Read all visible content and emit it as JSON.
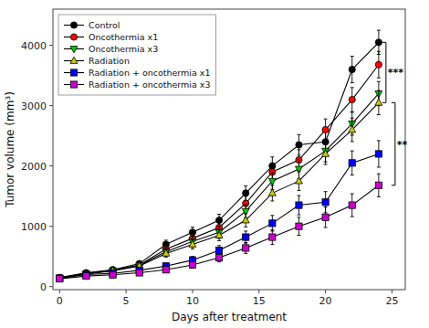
{
  "chart_data": {
    "type": "line",
    "xlabel": "Days after treatment",
    "ylabel": "Tumor volume (mm³)",
    "x": [
      0,
      2,
      4,
      6,
      8,
      10,
      12,
      14,
      16,
      18,
      20,
      22,
      24
    ],
    "series": [
      {
        "name": "Control",
        "color": "black",
        "marker": "circle",
        "values": [
          150,
          230,
          280,
          380,
          700,
          900,
          1100,
          1550,
          2000,
          2350,
          2400,
          3600,
          4050
        ],
        "errors": [
          15,
          25,
          30,
          45,
          70,
          85,
          100,
          120,
          150,
          170,
          200,
          220,
          200
        ]
      },
      {
        "name": "Oncothermia x1",
        "color": "red",
        "marker": "circle",
        "values": [
          145,
          220,
          270,
          360,
          620,
          800,
          980,
          1380,
          1900,
          2100,
          2600,
          3100,
          3680
        ],
        "errors": [
          15,
          25,
          30,
          45,
          70,
          85,
          100,
          120,
          150,
          170,
          180,
          200,
          220
        ]
      },
      {
        "name": "Oncothermia x3",
        "color": "#00cc00",
        "marker": "triangle-down",
        "values": [
          140,
          215,
          265,
          350,
          580,
          750,
          900,
          1250,
          1750,
          1950,
          2250,
          2700,
          3200
        ],
        "errors": [
          15,
          25,
          30,
          45,
          70,
          85,
          100,
          110,
          140,
          160,
          180,
          190,
          200
        ]
      },
      {
        "name": "Radiation",
        "color": "#cccc00",
        "marker": "triangle-up",
        "values": [
          140,
          210,
          260,
          340,
          550,
          700,
          850,
          1100,
          1550,
          1750,
          2200,
          2600,
          3050
        ],
        "errors": [
          15,
          25,
          30,
          40,
          60,
          75,
          90,
          110,
          130,
          155,
          175,
          195,
          200
        ]
      },
      {
        "name": "Radiation + oncothermia x1",
        "color": "blue",
        "marker": "square",
        "values": [
          140,
          200,
          220,
          270,
          340,
          440,
          600,
          820,
          1050,
          1350,
          1400,
          2050,
          2200
        ],
        "errors": [
          15,
          20,
          25,
          35,
          45,
          60,
          80,
          100,
          130,
          160,
          175,
          200,
          220
        ]
      },
      {
        "name": "Radiation + oncothermia x3",
        "color": "#cc00cc",
        "marker": "square",
        "values": [
          130,
          175,
          195,
          230,
          280,
          360,
          480,
          640,
          820,
          1000,
          1150,
          1350,
          1680
        ],
        "errors": [
          15,
          20,
          25,
          30,
          40,
          55,
          70,
          90,
          120,
          150,
          170,
          190,
          190
        ]
      }
    ],
    "xlim": [
      -0.5,
      26
    ],
    "ylim": [
      -50,
      4600
    ],
    "xticks": [
      0,
      5,
      10,
      15,
      20,
      25
    ],
    "yticks": [
      0,
      1000,
      2000,
      3000,
      4000
    ],
    "grid": false,
    "legend": "upper left",
    "annotations": [
      {
        "text": "***",
        "from": 3050,
        "to": 4050
      },
      {
        "text": "**",
        "from": 1680,
        "to": 3050
      }
    ]
  }
}
